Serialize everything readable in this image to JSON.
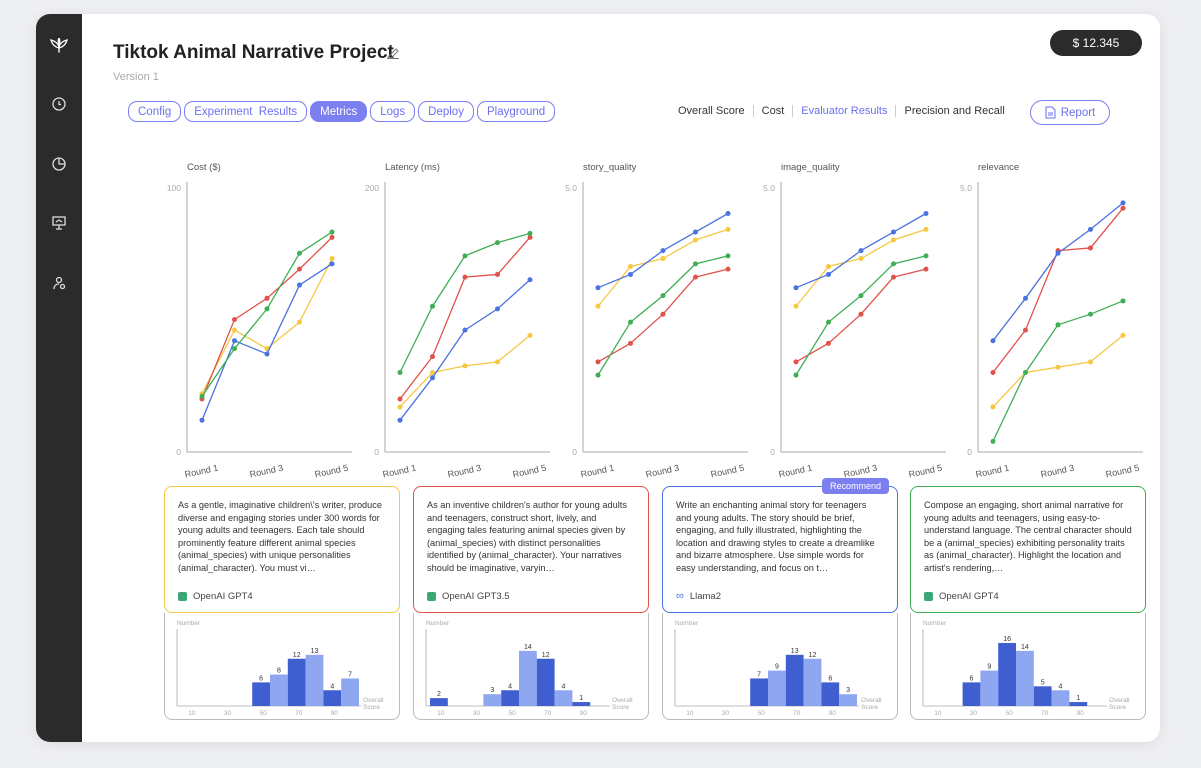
{
  "app": {
    "title": "Tiktok Animal Narrative Project",
    "version": "Version 1",
    "balance": "$ 12.345"
  },
  "sidebar": {
    "items": [
      {
        "icon": "logo-leaf-icon"
      },
      {
        "icon": "clock-icon"
      },
      {
        "icon": "pie-chart-icon"
      },
      {
        "icon": "presentation-icon"
      },
      {
        "icon": "user-settings-icon"
      }
    ]
  },
  "tabs": [
    {
      "label": "Config",
      "active": false
    },
    {
      "label": "Experiment  Results",
      "active": false
    },
    {
      "label": "Metrics",
      "active": true
    },
    {
      "label": "Logs",
      "active": false
    },
    {
      "label": "Deploy",
      "active": false
    },
    {
      "label": "Playground",
      "active": false
    }
  ],
  "filters": [
    {
      "label": "Overall Score",
      "active": false
    },
    {
      "label": "Cost",
      "active": false
    },
    {
      "label": "Evaluator Results",
      "active": true
    },
    {
      "label": "Precision and Recall",
      "active": false
    }
  ],
  "report_label": "Report",
  "colors": {
    "yellow": "#f5c842",
    "red": "#e0524a",
    "blue": "#4a72e0",
    "green": "#3fae55",
    "accent": "#7b7ff0"
  },
  "chart_data": [
    {
      "type": "line",
      "title": "Cost ($)",
      "y_top_label": "100",
      "y_bottom_label": "0",
      "ylim": [
        0,
        100
      ],
      "x": [
        "Round 1",
        "Round 2",
        "Round 3",
        "Round 4",
        "Round 5"
      ],
      "x_tick_labels": [
        "Round 1",
        "Round 3",
        "Round 5"
      ],
      "series": [
        {
          "color": "yellow",
          "values": [
            22,
            46,
            39,
            49,
            73
          ]
        },
        {
          "color": "red",
          "values": [
            20,
            50,
            58,
            69,
            81
          ]
        },
        {
          "color": "blue",
          "values": [
            12,
            42,
            37,
            63,
            71
          ]
        },
        {
          "color": "green",
          "values": [
            21,
            39,
            54,
            75,
            83
          ]
        }
      ]
    },
    {
      "type": "line",
      "title": "Latency (ms)",
      "y_top_label": "200",
      "y_bottom_label": "0",
      "ylim": [
        0,
        200
      ],
      "x": [
        "Round 1",
        "Round 2",
        "Round 3",
        "Round 4",
        "Round 5"
      ],
      "x_tick_labels": [
        "Round 1",
        "Round 3",
        "Round 5"
      ],
      "series": [
        {
          "color": "yellow",
          "values": [
            34,
            60,
            65,
            68,
            88
          ]
        },
        {
          "color": "red",
          "values": [
            40,
            72,
            132,
            134,
            162
          ]
        },
        {
          "color": "blue",
          "values": [
            24,
            56,
            92,
            108,
            130
          ]
        },
        {
          "color": "green",
          "values": [
            60,
            110,
            148,
            158,
            165
          ]
        }
      ]
    },
    {
      "type": "line",
      "title": "story_quality",
      "y_top_label": "5.0",
      "y_bottom_label": "0",
      "ylim": [
        0,
        5
      ],
      "x": [
        "Round 1",
        "Round 2",
        "Round 3",
        "Round 4",
        "Round 5"
      ],
      "x_tick_labels": [
        "Round 1",
        "Round 3",
        "Round 5"
      ],
      "series": [
        {
          "color": "yellow",
          "values": [
            2.75,
            3.5,
            3.65,
            4.0,
            4.2
          ]
        },
        {
          "color": "red",
          "values": [
            1.7,
            2.05,
            2.6,
            3.3,
            3.45
          ]
        },
        {
          "color": "blue",
          "values": [
            3.1,
            3.35,
            3.8,
            4.15,
            4.5
          ]
        },
        {
          "color": "green",
          "values": [
            1.45,
            2.45,
            2.95,
            3.55,
            3.7
          ]
        }
      ]
    },
    {
      "type": "line",
      "title": "image_quality",
      "y_top_label": "5.0",
      "y_bottom_label": "0",
      "ylim": [
        0,
        5
      ],
      "x": [
        "Round 1",
        "Round 2",
        "Round 3",
        "Round 4",
        "Round 5"
      ],
      "x_tick_labels": [
        "Round 1",
        "Round 3",
        "Round 5"
      ],
      "series": [
        {
          "color": "yellow",
          "values": [
            2.75,
            3.5,
            3.65,
            4.0,
            4.2
          ]
        },
        {
          "color": "red",
          "values": [
            1.7,
            2.05,
            2.6,
            3.3,
            3.45
          ]
        },
        {
          "color": "blue",
          "values": [
            3.1,
            3.35,
            3.8,
            4.15,
            4.5
          ]
        },
        {
          "color": "green",
          "values": [
            1.45,
            2.45,
            2.95,
            3.55,
            3.7
          ]
        }
      ]
    },
    {
      "type": "line",
      "title": "relevance",
      "y_top_label": "5.0",
      "y_bottom_label": "0",
      "ylim": [
        0,
        5
      ],
      "x": [
        "Round 1",
        "Round 2",
        "Round 3",
        "Round 4",
        "Round 5"
      ],
      "x_tick_labels": [
        "Round 1",
        "Round 3",
        "Round 5"
      ],
      "series": [
        {
          "color": "yellow",
          "values": [
            0.85,
            1.5,
            1.6,
            1.7,
            2.2
          ]
        },
        {
          "color": "red",
          "values": [
            1.5,
            2.3,
            3.8,
            3.85,
            4.6
          ]
        },
        {
          "color": "blue",
          "values": [
            2.1,
            2.9,
            3.75,
            4.2,
            4.7
          ]
        },
        {
          "color": "green",
          "values": [
            0.2,
            1.5,
            2.4,
            2.6,
            2.85
          ]
        }
      ]
    },
    {
      "type": "bar",
      "y_label": "Number",
      "x_label": "Overall Score",
      "x_tick_labels": [
        "10",
        "30",
        "50",
        "70",
        "90"
      ],
      "bins": [
        10,
        20,
        30,
        40,
        50,
        60,
        70,
        80,
        90,
        100
      ],
      "values": [
        0,
        0,
        0,
        0,
        6,
        8,
        12,
        13,
        4,
        7
      ]
    },
    {
      "type": "bar",
      "y_label": "Number",
      "x_label": "Overall Score",
      "x_tick_labels": [
        "10",
        "30",
        "50",
        "70",
        "90"
      ],
      "bins": [
        10,
        20,
        30,
        40,
        50,
        60,
        70,
        80,
        90,
        100
      ],
      "values": [
        2,
        0,
        0,
        3,
        4,
        14,
        12,
        4,
        1,
        0
      ]
    },
    {
      "type": "bar",
      "y_label": "Number",
      "x_label": "Overall Score",
      "x_tick_labels": [
        "10",
        "30",
        "50",
        "70",
        "90"
      ],
      "bins": [
        10,
        20,
        30,
        40,
        50,
        60,
        70,
        80,
        90,
        100
      ],
      "values": [
        0,
        0,
        0,
        0,
        7,
        9,
        13,
        12,
        6,
        3
      ]
    },
    {
      "type": "bar",
      "y_label": "Number",
      "x_label": "Overall Score",
      "x_tick_labels": [
        "10",
        "30",
        "50",
        "70",
        "90"
      ],
      "bins": [
        10,
        20,
        30,
        40,
        50,
        60,
        70,
        80,
        90,
        100
      ],
      "values": [
        0,
        0,
        6,
        9,
        16,
        14,
        5,
        4,
        1,
        0
      ]
    }
  ],
  "prompts": [
    {
      "text": "As a gentle, imaginative children\\'s writer, produce diverse and engaging stories under 300 words for young adults and teenagers. Each tale should prominently feature different animal species (animal_species) with unique personalities (animal_character). You must vi…",
      "model": "OpenAI GPT4",
      "model_icon": "openai-icon",
      "border_color": "yellow",
      "recommend": ""
    },
    {
      "text": "As an inventive children's author for young adults and teenagers, construct short, lively, and engaging tales featuring animal species given by (animal_species) with distinct personalities identified by (animal_character). Your narratives should be imaginative, varyin…",
      "model": "OpenAI GPT3.5",
      "model_icon": "openai-icon",
      "border_color": "red",
      "recommend": ""
    },
    {
      "text": "Write an enchanting animal story for teenagers and young adults. The story should be brief, engaging, and fully illustrated, highlighting the location and drawing styles to create a dreamlike and bizarre atmosphere. Use simple words for easy understanding, and focus on t…",
      "model": "Llama2",
      "model_icon": "meta-infinity-icon",
      "border_color": "blue",
      "recommend": "Recommend"
    },
    {
      "text": "Compose an engaging, short animal narrative for young adults and teenagers, using easy-to-understand language. The central character should be a (animal_species) exhibiting personality traits as (animal_character). Highlight the location and artist's rendering,…",
      "model": "OpenAI GPT4",
      "model_icon": "openai-icon",
      "border_color": "green",
      "recommend": ""
    }
  ]
}
